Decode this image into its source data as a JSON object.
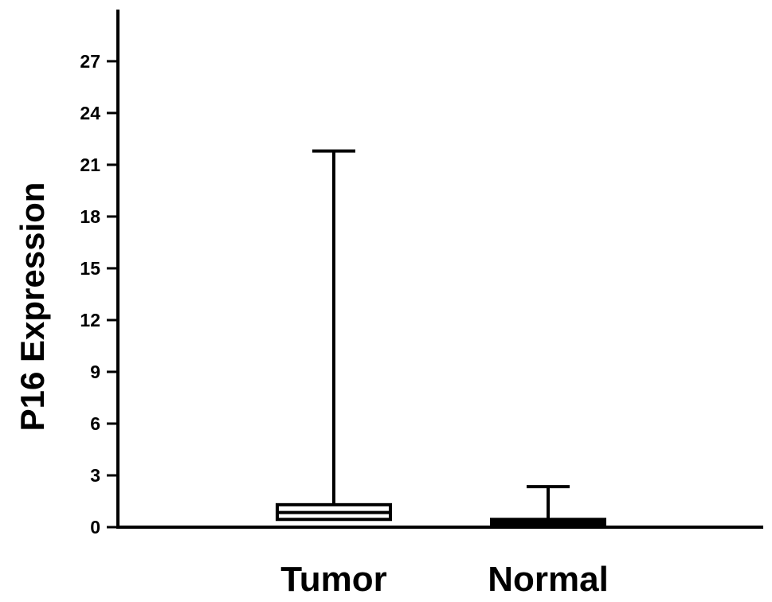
{
  "chart_data": {
    "type": "box",
    "title": "",
    "xlabel": "",
    "ylabel": "P16 Expression",
    "ylim": [
      0,
      30
    ],
    "yticks": [
      0,
      3,
      6,
      9,
      12,
      15,
      18,
      21,
      24,
      27
    ],
    "ytick_labels": [
      "0",
      "3",
      "6",
      "9",
      "12",
      "15",
      "18",
      "21",
      "24",
      "27"
    ],
    "grid": false,
    "legend": "none",
    "categories": [
      "Tumor",
      "Normal"
    ],
    "boxes": [
      {
        "category": "Tumor",
        "min": 0.4,
        "q1": 0.45,
        "median": 0.85,
        "q3": 1.3,
        "max": 21.8,
        "fill": "#ffffff"
      },
      {
        "category": "Normal",
        "min": 0.1,
        "q1": 0.15,
        "median": 0.25,
        "q3": 0.45,
        "max": 2.35,
        "fill": "#000000"
      }
    ],
    "colors": {
      "axis": "#000000",
      "box_stroke": "#000000"
    }
  }
}
